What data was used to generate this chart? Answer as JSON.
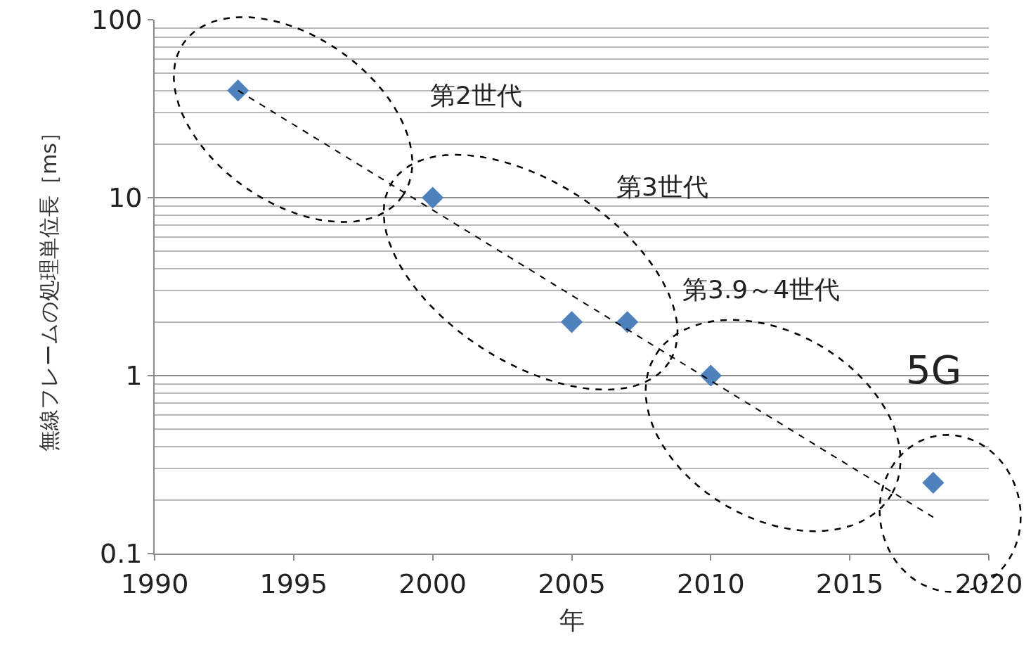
{
  "chart_data": {
    "type": "scatter",
    "xlabel": "年",
    "ylabel": "無線フレームの処理単位長［ms］",
    "x": [
      1993,
      2000,
      2005,
      2007,
      2010,
      2018
    ],
    "series": [
      {
        "color": "#4f81bd",
        "values": [
          40,
          10,
          2,
          2,
          1,
          0.25
        ],
        "marker": "diamond"
      },
      {
        "type": "line",
        "color": "#000000",
        "x": [
          1993,
          2018
        ],
        "values": [
          40,
          0.16
        ],
        "line_style": "dashed",
        "marker": "none"
      }
    ],
    "annotations": [
      "第2世代",
      "第3世代",
      "第3.9～4世代",
      "5G"
    ],
    "xlim": [
      1990,
      2020
    ],
    "xticks": [
      1990,
      1995,
      2000,
      2005,
      2010,
      2015,
      2020
    ],
    "ylim": [
      0.1,
      100
    ],
    "yticks": [
      0.1,
      1,
      10,
      100
    ],
    "log": "y",
    "grid": "y"
  }
}
